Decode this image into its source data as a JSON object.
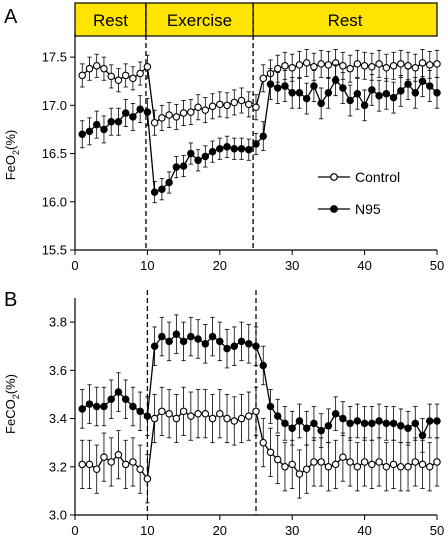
{
  "phase_color": "#ffe400",
  "control_color": "#ffffff",
  "n95_color": "#000000",
  "chart_data": [
    {
      "panel_label": "A",
      "type": "line",
      "ylabel_main": "FeO",
      "ylabel_sub": "2",
      "ylabel_unit": "(%)",
      "xlim": [
        0,
        50
      ],
      "ylim": [
        15.5,
        17.75
      ],
      "xticks": [
        "0",
        "10",
        "20",
        "30",
        "40",
        "50"
      ],
      "yticks": [
        "15.5",
        "16.0",
        "16.5",
        "17.0",
        "17.5"
      ],
      "vlines": [
        9.8,
        24.6
      ],
      "phases": [
        {
          "label": "Rest",
          "start": 0,
          "end": 9.8
        },
        {
          "label": "Exercise",
          "start": 9.8,
          "end": 24.6
        },
        {
          "label": "Rest",
          "start": 24.6,
          "end": 50
        }
      ],
      "legend": {
        "position": "right",
        "items": [
          "Control",
          "N95"
        ]
      },
      "x": [
        1,
        2,
        3,
        4,
        5,
        6,
        7,
        8,
        9,
        10,
        11,
        12,
        13,
        14,
        15,
        16,
        17,
        18,
        19,
        20,
        21,
        22,
        23,
        24,
        25,
        26,
        27,
        28,
        29,
        30,
        31,
        32,
        33,
        34,
        35,
        36,
        37,
        38,
        39,
        40,
        41,
        42,
        43,
        44,
        45,
        46,
        47,
        48,
        49,
        50
      ],
      "series": [
        {
          "name": "Control",
          "marker": "open",
          "values": [
            17.31,
            17.38,
            17.41,
            17.38,
            17.3,
            17.26,
            17.31,
            17.28,
            17.33,
            17.4,
            16.82,
            16.87,
            16.9,
            16.88,
            16.92,
            16.93,
            16.98,
            16.95,
            16.99,
            17.01,
            17.0,
            17.03,
            17.05,
            17.01,
            16.98,
            17.28,
            17.33,
            17.38,
            17.41,
            17.39,
            17.42,
            17.44,
            17.4,
            17.43,
            17.42,
            17.44,
            17.41,
            17.38,
            17.43,
            17.41,
            17.4,
            17.43,
            17.39,
            17.41,
            17.43,
            17.41,
            17.39,
            17.44,
            17.42,
            17.43
          ],
          "err": [
            0.12,
            0.12,
            0.12,
            0.12,
            0.12,
            0.12,
            0.12,
            0.12,
            0.12,
            0.12,
            0.13,
            0.13,
            0.13,
            0.13,
            0.13,
            0.13,
            0.13,
            0.13,
            0.13,
            0.13,
            0.13,
            0.13,
            0.13,
            0.13,
            0.13,
            0.14,
            0.14,
            0.14,
            0.14,
            0.14,
            0.14,
            0.14,
            0.14,
            0.14,
            0.14,
            0.14,
            0.14,
            0.14,
            0.14,
            0.14,
            0.14,
            0.14,
            0.14,
            0.14,
            0.14,
            0.14,
            0.14,
            0.14,
            0.14,
            0.14
          ]
        },
        {
          "name": "N95",
          "marker": "filled",
          "values": [
            16.7,
            16.73,
            16.8,
            16.75,
            16.83,
            16.83,
            16.92,
            16.88,
            16.96,
            16.93,
            16.1,
            16.13,
            16.2,
            16.36,
            16.37,
            16.5,
            16.43,
            16.47,
            16.52,
            16.55,
            16.57,
            16.55,
            16.55,
            16.54,
            16.6,
            16.68,
            17.22,
            17.18,
            17.2,
            17.13,
            17.13,
            17.07,
            17.2,
            17.02,
            17.13,
            17.26,
            17.18,
            17.05,
            17.12,
            17.0,
            17.16,
            17.1,
            17.12,
            17.08,
            17.15,
            17.22,
            17.13,
            17.25,
            17.2,
            17.13
          ],
          "err": [
            0.14,
            0.14,
            0.14,
            0.14,
            0.14,
            0.14,
            0.14,
            0.14,
            0.14,
            0.14,
            0.11,
            0.11,
            0.11,
            0.11,
            0.11,
            0.11,
            0.11,
            0.11,
            0.11,
            0.11,
            0.11,
            0.11,
            0.11,
            0.11,
            0.11,
            0.15,
            0.16,
            0.16,
            0.16,
            0.16,
            0.16,
            0.16,
            0.16,
            0.16,
            0.16,
            0.16,
            0.16,
            0.16,
            0.16,
            0.16,
            0.16,
            0.16,
            0.16,
            0.16,
            0.16,
            0.16,
            0.16,
            0.16,
            0.16,
            0.16
          ]
        }
      ]
    },
    {
      "panel_label": "B",
      "type": "line",
      "ylabel_main": "FeCO",
      "ylabel_sub": "2",
      "ylabel_unit": "(%)",
      "xlim": [
        0,
        50
      ],
      "ylim": [
        3.0,
        3.9
      ],
      "xticks": [
        "0",
        "10",
        "20",
        "30",
        "40",
        "50"
      ],
      "yticks": [
        "3.0",
        "3.2",
        "3.4",
        "3.6",
        "3.8"
      ],
      "vlines": [
        10,
        25
      ],
      "x": [
        1,
        2,
        3,
        4,
        5,
        6,
        7,
        8,
        9,
        10,
        11,
        12,
        13,
        14,
        15,
        16,
        17,
        18,
        19,
        20,
        21,
        22,
        23,
        24,
        25,
        26,
        27,
        28,
        29,
        30,
        31,
        32,
        33,
        34,
        35,
        36,
        37,
        38,
        39,
        40,
        41,
        42,
        43,
        44,
        45,
        46,
        47,
        48,
        49,
        50
      ],
      "series": [
        {
          "name": "Control",
          "marker": "open",
          "values": [
            3.21,
            3.21,
            3.19,
            3.24,
            3.22,
            3.25,
            3.21,
            3.22,
            3.19,
            3.15,
            3.4,
            3.43,
            3.42,
            3.4,
            3.43,
            3.41,
            3.42,
            3.42,
            3.4,
            3.42,
            3.4,
            3.39,
            3.4,
            3.41,
            3.43,
            3.3,
            3.26,
            3.23,
            3.2,
            3.21,
            3.17,
            3.19,
            3.22,
            3.22,
            3.2,
            3.21,
            3.24,
            3.22,
            3.2,
            3.22,
            3.21,
            3.22,
            3.2,
            3.21,
            3.2,
            3.2,
            3.22,
            3.21,
            3.2,
            3.22
          ],
          "err": [
            0.1,
            0.1,
            0.1,
            0.1,
            0.1,
            0.1,
            0.1,
            0.1,
            0.1,
            0.1,
            0.1,
            0.1,
            0.1,
            0.1,
            0.1,
            0.1,
            0.1,
            0.1,
            0.1,
            0.1,
            0.1,
            0.1,
            0.1,
            0.1,
            0.1,
            0.1,
            0.1,
            0.1,
            0.1,
            0.1,
            0.1,
            0.1,
            0.1,
            0.1,
            0.1,
            0.1,
            0.1,
            0.1,
            0.1,
            0.1,
            0.1,
            0.1,
            0.1,
            0.1,
            0.1,
            0.1,
            0.1,
            0.1,
            0.1,
            0.1
          ]
        },
        {
          "name": "N95",
          "marker": "filled",
          "values": [
            3.44,
            3.46,
            3.45,
            3.45,
            3.48,
            3.51,
            3.48,
            3.45,
            3.43,
            3.41,
            3.7,
            3.74,
            3.72,
            3.75,
            3.72,
            3.74,
            3.73,
            3.71,
            3.74,
            3.72,
            3.69,
            3.7,
            3.72,
            3.71,
            3.7,
            3.62,
            3.45,
            3.41,
            3.38,
            3.36,
            3.39,
            3.36,
            3.38,
            3.35,
            3.37,
            3.42,
            3.4,
            3.38,
            3.39,
            3.38,
            3.38,
            3.39,
            3.38,
            3.38,
            3.37,
            3.36,
            3.38,
            3.33,
            3.39,
            3.39
          ],
          "err": [
            0.08,
            0.08,
            0.08,
            0.08,
            0.08,
            0.08,
            0.08,
            0.08,
            0.08,
            0.08,
            0.08,
            0.08,
            0.08,
            0.08,
            0.08,
            0.08,
            0.08,
            0.08,
            0.08,
            0.08,
            0.08,
            0.08,
            0.08,
            0.08,
            0.08,
            0.08,
            0.07,
            0.07,
            0.07,
            0.07,
            0.07,
            0.07,
            0.07,
            0.07,
            0.07,
            0.07,
            0.07,
            0.07,
            0.07,
            0.07,
            0.07,
            0.07,
            0.07,
            0.07,
            0.07,
            0.07,
            0.07,
            0.07,
            0.07,
            0.07
          ]
        }
      ]
    }
  ]
}
